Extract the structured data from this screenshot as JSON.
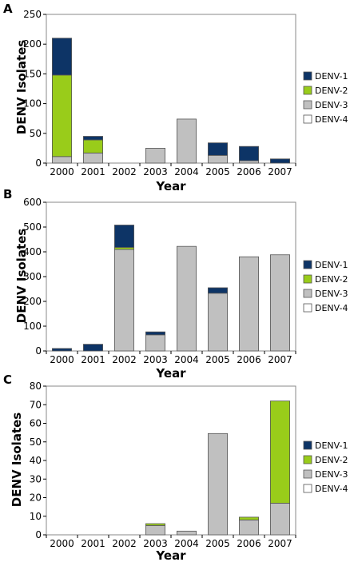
{
  "colors": {
    "DENV-1": "#0d3466",
    "DENV-2": "#99cc1a",
    "DENV-3": "#c0c0c0",
    "DENV-4": "#ffffff"
  },
  "chart_data": [
    {
      "panel": "A",
      "type": "bar",
      "stacked": true,
      "categories": [
        "2000",
        "2001",
        "2002",
        "2003",
        "2004",
        "2005",
        "2006",
        "2007"
      ],
      "series": [
        {
          "name": "DENV-1",
          "values": [
            62,
            6,
            0,
            0,
            0,
            21,
            24,
            7
          ]
        },
        {
          "name": "DENV-2",
          "values": [
            137,
            22,
            0,
            0,
            0,
            0,
            0,
            0
          ]
        },
        {
          "name": "DENV-3",
          "values": [
            11,
            17,
            0,
            25,
            74,
            13,
            4,
            0
          ]
        },
        {
          "name": "DENV-4",
          "values": [
            0,
            0,
            0,
            0,
            0,
            0,
            0,
            0
          ]
        }
      ],
      "xlabel": "Year",
      "ylabel": "DENV Isolates",
      "ylim": [
        0,
        250
      ],
      "yticks": [
        0,
        50,
        100,
        150,
        200,
        250
      ],
      "legend": "right"
    },
    {
      "panel": "B",
      "type": "bar",
      "stacked": true,
      "categories": [
        "2000",
        "2001",
        "2002",
        "2003",
        "2004",
        "2005",
        "2006",
        "2007"
      ],
      "series": [
        {
          "name": "DENV-1",
          "values": [
            10,
            27,
            90,
            12,
            0,
            22,
            0,
            0
          ]
        },
        {
          "name": "DENV-2",
          "values": [
            0,
            0,
            8,
            0,
            0,
            0,
            0,
            0
          ]
        },
        {
          "name": "DENV-3",
          "values": [
            0,
            0,
            410,
            65,
            422,
            233,
            380,
            388
          ]
        },
        {
          "name": "DENV-4",
          "values": [
            0,
            0,
            0,
            0,
            0,
            0,
            0,
            0
          ]
        }
      ],
      "xlabel": "Year",
      "ylabel": "DENV Isolates",
      "ylim": [
        0,
        600
      ],
      "yticks": [
        0,
        100,
        200,
        300,
        400,
        500,
        600
      ],
      "legend": "right"
    },
    {
      "panel": "C",
      "type": "bar",
      "stacked": true,
      "categories": [
        "2000",
        "2001",
        "2002",
        "2003",
        "2004",
        "2005",
        "2006",
        "2007"
      ],
      "series": [
        {
          "name": "DENV-1",
          "values": [
            0,
            0,
            0,
            0,
            0,
            0,
            0,
            0
          ]
        },
        {
          "name": "DENV-2",
          "values": [
            0,
            0,
            0,
            1,
            0,
            0,
            1.5,
            55
          ]
        },
        {
          "name": "DENV-3",
          "values": [
            0,
            0,
            0,
            5,
            2,
            54.5,
            8,
            17
          ]
        },
        {
          "name": "DENV-4",
          "values": [
            0,
            0,
            0,
            0,
            0,
            0,
            0,
            0
          ]
        }
      ],
      "xlabel": "Year",
      "ylabel": "DENV Isolates",
      "ylim": [
        0,
        80
      ],
      "yticks": [
        0,
        10,
        20,
        30,
        40,
        50,
        60,
        70,
        80
      ],
      "legend": "right"
    }
  ]
}
